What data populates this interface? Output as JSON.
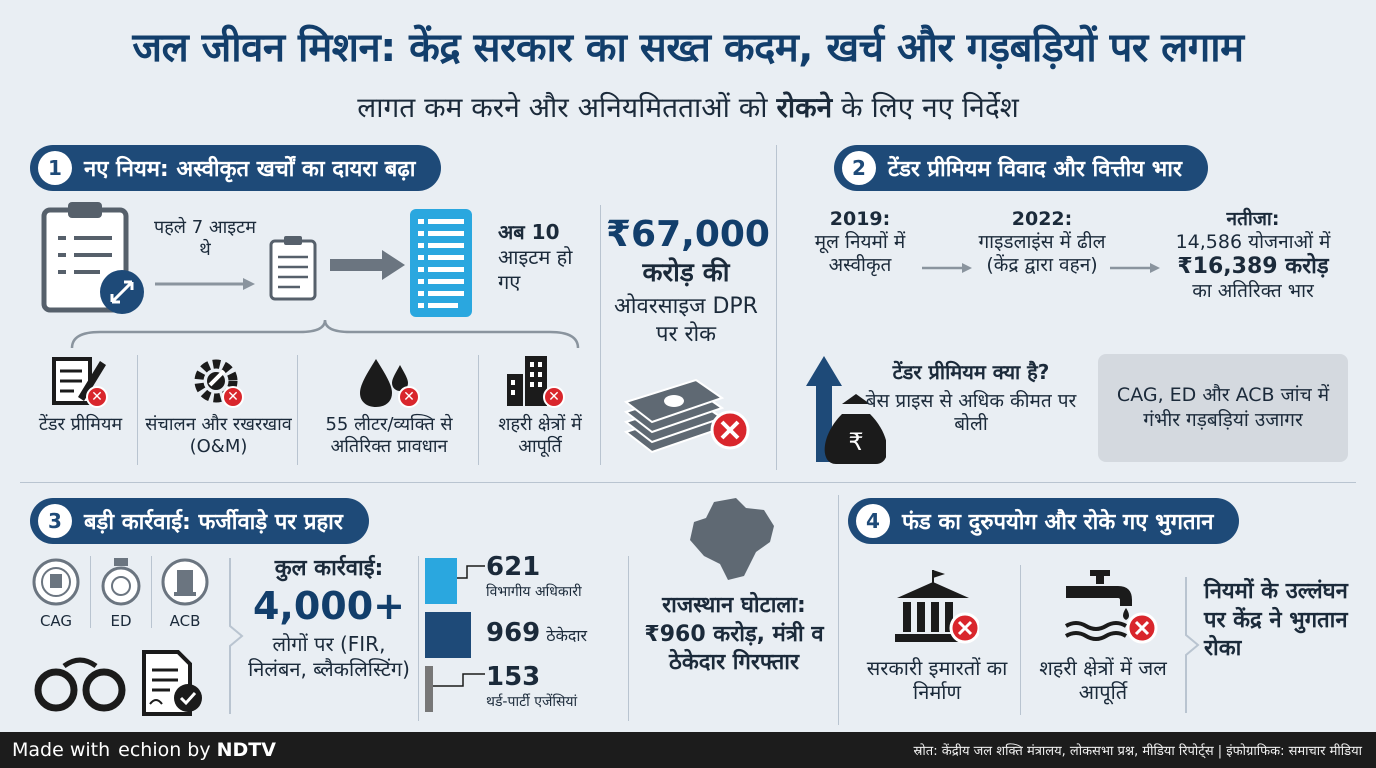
{
  "header": {
    "title": "जल जीवन मिशन: केंद्र सरकार का सख्त कदम, खर्च और गड़बड़ियों पर लगाम",
    "subtitle_pre": "लागत कम करने और अनियमितताओं को",
    "subtitle_bold": "रोकने",
    "subtitle_post": "के लिए नए निर्देश"
  },
  "section1": {
    "num": "1",
    "title": "नए नियम: अस्वीकृत खर्चों का दायरा बढ़ा",
    "before": "पहले 7 आइटम थे",
    "after_bold": "अब 10",
    "after_rest": "आइटम हो गए",
    "items": [
      {
        "label": "टेंडर प्रीमियम",
        "icon": "document-pen-icon"
      },
      {
        "label": "संचालन और रखरखाव (O&M)",
        "icon": "gear-wrench-icon"
      },
      {
        "label": "55 लीटर/व्यक्ति से अतिरिक्त प्रावधान",
        "icon": "water-drop-icon"
      },
      {
        "label": "शहरी क्षेत्रों में आपूर्ति",
        "icon": "city-buildings-icon"
      }
    ],
    "amount": "₹67,000",
    "amount_unit": "करोड़ की",
    "amount_desc": "ओवरसाइज DPR पर रोक"
  },
  "section2": {
    "num": "2",
    "title": "टेंडर प्रीमियम विवाद और वित्तीय भार",
    "timeline": [
      {
        "year": "2019:",
        "text": "मूल नियमों में अस्वीकृत"
      },
      {
        "year": "2022:",
        "text": "गाइडलाइंस में ढील (केंद्र द्वारा वहन)"
      }
    ],
    "result_label": "नतीजा:",
    "result_line1": "14,586 योजनाओं में",
    "result_amount": "₹16,389 करोड़",
    "result_line2": "का अतिरिक्त भार",
    "premium_q": "टेंडर प्रीमियम क्या है?",
    "premium_a": "बेस प्राइस से अधिक कीमत पर बोली",
    "probe": "CAG, ED और ACB जांच में गंभीर गड़बड़ियां उजागर"
  },
  "section3": {
    "num": "3",
    "title": "बड़ी कार्रवाई: फर्जीवाड़े पर प्रहार",
    "agencies": [
      "CAG",
      "ED",
      "ACB"
    ],
    "total_label": "कुल कार्रवाई:",
    "total_value": "4,000+",
    "total_desc": "लोगों पर (FIR, निलंबन, ब्लैकलिस्टिंग)",
    "breakdown": [
      {
        "value": "621",
        "label": "विभागीय अधिकारी"
      },
      {
        "value": "969",
        "label": "ठेकेदार"
      },
      {
        "value": "153",
        "label": "थर्ड-पार्टी एजेंसियां"
      }
    ],
    "rajasthan": "राजस्थान घोटाला: ₹960 करोड़, मंत्री व ठेकेदार गिरफ्तार"
  },
  "section4": {
    "num": "4",
    "title": "फंड का दुरुपयोग और रोके गए भुगतान",
    "items": [
      {
        "label": "सरकारी इमारतों का निर्माण",
        "icon": "government-building-icon"
      },
      {
        "label": "शहरी क्षेत्रों में जल आपूर्ति",
        "icon": "water-tap-icon"
      }
    ],
    "conclusion": "नियमों के उल्लंघन पर केंद्र ने भुगतान रोका"
  },
  "footer": {
    "made_with": "Made with",
    "brand": "echion by",
    "ndtv": "NDTV",
    "source": "स्रोत: केंद्रीय जल शक्ति मंत्रालय, लोकसभा प्रश्न, मीडिया रिपोर्ट्स | इंफोग्राफिक: समाचार मीडिया"
  },
  "colors": {
    "navy": "#1e4a78",
    "title": "#123e6b",
    "red": "#d9262c",
    "bar_light": "#2aa7df",
    "bar_dark": "#1e4a78",
    "bar_grey": "#777777"
  }
}
